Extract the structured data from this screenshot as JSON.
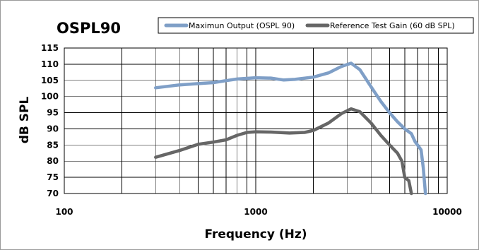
{
  "chart_data": {
    "type": "line",
    "title": "OSPL90",
    "xlabel": "Frequency (Hz)",
    "ylabel": "dB SPL",
    "xscale": "log",
    "xlim": [
      100,
      10000
    ],
    "ylim": [
      70,
      115
    ],
    "xticks": [
      100,
      1000,
      10000
    ],
    "xtick_labels": [
      "100",
      "1000",
      "10000"
    ],
    "yticks": [
      70,
      75,
      80,
      85,
      90,
      95,
      100,
      105,
      110,
      115
    ],
    "ytick_labels": [
      "70",
      "75",
      "80",
      "85",
      "90",
      "95",
      "100",
      "105",
      "110",
      "115"
    ],
    "grid": true,
    "legend_position": "top",
    "series": [
      {
        "name": "Maximun Output (OSPL 90)",
        "color": "#7f9fc7",
        "points": [
          [
            300,
            102.7
          ],
          [
            400,
            103.6
          ],
          [
            500,
            104.0
          ],
          [
            600,
            104.3
          ],
          [
            700,
            104.9
          ],
          [
            800,
            105.4
          ],
          [
            1000,
            105.8
          ],
          [
            1200,
            105.7
          ],
          [
            1400,
            105.1
          ],
          [
            1600,
            105.3
          ],
          [
            2000,
            106.0
          ],
          [
            2400,
            107.3
          ],
          [
            2800,
            109.3
          ],
          [
            3150,
            110.3
          ],
          [
            3500,
            108.3
          ],
          [
            4000,
            103.0
          ],
          [
            4500,
            98.5
          ],
          [
            5000,
            95.0
          ],
          [
            5500,
            92.2
          ],
          [
            6000,
            90.0
          ],
          [
            6500,
            88.5
          ],
          [
            6800,
            86.0
          ],
          [
            7100,
            84.5
          ],
          [
            7300,
            83.5
          ],
          [
            7500,
            78.0
          ],
          [
            7700,
            70.0
          ]
        ]
      },
      {
        "name": "Reference Test Gain (60 dB SPL)",
        "color": "#666666",
        "points": [
          [
            300,
            81.2
          ],
          [
            400,
            83.3
          ],
          [
            500,
            85.2
          ],
          [
            600,
            85.9
          ],
          [
            700,
            86.6
          ],
          [
            800,
            88.0
          ],
          [
            900,
            88.9
          ],
          [
            1000,
            89.1
          ],
          [
            1200,
            89.0
          ],
          [
            1500,
            88.7
          ],
          [
            1800,
            88.9
          ],
          [
            2000,
            89.5
          ],
          [
            2400,
            91.8
          ],
          [
            2800,
            94.7
          ],
          [
            3150,
            96.2
          ],
          [
            3500,
            95.3
          ],
          [
            4000,
            91.8
          ],
          [
            4500,
            88.0
          ],
          [
            5000,
            85.0
          ],
          [
            5500,
            82.5
          ],
          [
            5800,
            80.0
          ],
          [
            6000,
            75.0
          ],
          [
            6300,
            74.0
          ],
          [
            6500,
            70.0
          ]
        ]
      }
    ]
  }
}
